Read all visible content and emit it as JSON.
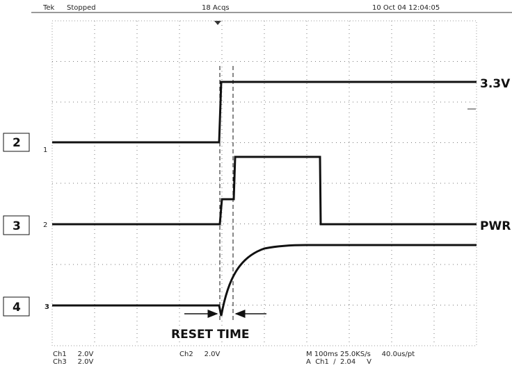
{
  "header": {
    "brand": "Tek",
    "status": "Stopped",
    "acquisitions": "18 Acqs",
    "timestamp": "10 Oct 04 12:04:05"
  },
  "channel_markers": [
    "1",
    "2",
    "3"
  ],
  "boxes": [
    "2",
    "3",
    "4"
  ],
  "signal_labels": [
    "3.3V",
    "PWR"
  ],
  "annotation": "RESET TIME",
  "footer": {
    "ch1": "Ch1     2.0V",
    "ch3": "Ch3     2.0V",
    "ch2": "Ch2     2.0V",
    "timebase": "M 100ms 25.0KS/s     40.0us/pt",
    "trigger": "A  Ch1  ∕  2.04     V"
  }
}
